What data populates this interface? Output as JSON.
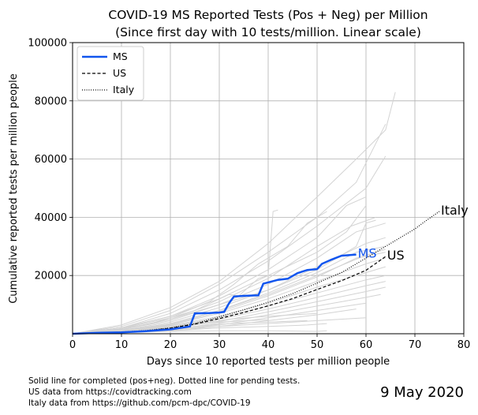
{
  "chart_data": {
    "type": "line",
    "title": "COVID-19 MS Reported Tests (Pos + Neg) per Million",
    "subtitle": "(Since first day with 10 tests/million. Linear scale)",
    "xlabel": "Days since 10 reported tests per million people",
    "ylabel": "Cumulative reported tests per million people",
    "xlim": [
      0,
      80
    ],
    "ylim": [
      0,
      100000
    ],
    "x_ticks": [
      "0",
      "10",
      "20",
      "30",
      "40",
      "50",
      "60",
      "70",
      "80"
    ],
    "y_ticks": [
      "20000",
      "40000",
      "60000",
      "80000",
      "100000"
    ],
    "grid": true,
    "legend_position": "top-left",
    "series": [
      {
        "name": "MS",
        "label": "MS",
        "color": "#1155ee",
        "style": "solid",
        "points": [
          [
            0,
            0
          ],
          [
            5,
            300
          ],
          [
            10,
            500
          ],
          [
            15,
            900
          ],
          [
            20,
            1500
          ],
          [
            24,
            2500
          ],
          [
            25,
            7000
          ],
          [
            28,
            7100
          ],
          [
            30,
            7300
          ],
          [
            31,
            7500
          ],
          [
            32,
            10500
          ],
          [
            33,
            12800
          ],
          [
            35,
            13000
          ],
          [
            38,
            13200
          ],
          [
            39,
            17200
          ],
          [
            42,
            18500
          ],
          [
            44,
            18900
          ],
          [
            46,
            20800
          ],
          [
            48,
            21900
          ],
          [
            50,
            22200
          ],
          [
            51,
            24000
          ],
          [
            53,
            25500
          ],
          [
            55,
            26800
          ],
          [
            58,
            27200
          ]
        ]
      },
      {
        "name": "US",
        "label": "US",
        "color": "#000000",
        "style": "dashed",
        "points": [
          [
            0,
            0
          ],
          [
            5,
            200
          ],
          [
            10,
            500
          ],
          [
            15,
            1000
          ],
          [
            20,
            1900
          ],
          [
            25,
            3300
          ],
          [
            30,
            5200
          ],
          [
            35,
            7300
          ],
          [
            40,
            9600
          ],
          [
            45,
            12100
          ],
          [
            50,
            15200
          ],
          [
            55,
            18200
          ],
          [
            60,
            21800
          ],
          [
            64,
            26500
          ]
        ]
      },
      {
        "name": "Italy",
        "label": "Italy",
        "color": "#000000",
        "style": "dotted",
        "points": [
          [
            0,
            0
          ],
          [
            5,
            250
          ],
          [
            10,
            600
          ],
          [
            15,
            1100
          ],
          [
            20,
            2000
          ],
          [
            25,
            3500
          ],
          [
            30,
            5800
          ],
          [
            35,
            8200
          ],
          [
            40,
            10800
          ],
          [
            45,
            13800
          ],
          [
            50,
            17400
          ],
          [
            55,
            21000
          ],
          [
            60,
            26000
          ],
          [
            65,
            31000
          ],
          [
            70,
            36000
          ],
          [
            72,
            38500
          ],
          [
            75,
            42000
          ]
        ]
      }
    ],
    "background_series": [
      {
        "points": [
          [
            0,
            0
          ],
          [
            10,
            3000
          ],
          [
            20,
            9000
          ],
          [
            30,
            18000
          ],
          [
            40,
            31000
          ],
          [
            50,
            47000
          ],
          [
            58,
            60000
          ],
          [
            64,
            70000
          ],
          [
            66,
            83000
          ]
        ]
      },
      {
        "points": [
          [
            0,
            0
          ],
          [
            10,
            2500
          ],
          [
            20,
            8000
          ],
          [
            30,
            17000
          ],
          [
            40,
            28000
          ],
          [
            50,
            40000
          ],
          [
            58,
            52000
          ],
          [
            64,
            72000
          ]
        ]
      },
      {
        "points": [
          [
            0,
            0
          ],
          [
            10,
            2000
          ],
          [
            20,
            7000
          ],
          [
            30,
            15000
          ],
          [
            40,
            25000
          ],
          [
            50,
            37000
          ],
          [
            60,
            50000
          ],
          [
            64,
            61000
          ]
        ]
      },
      {
        "points": [
          [
            0,
            0
          ],
          [
            10,
            2000
          ],
          [
            20,
            6000
          ],
          [
            30,
            13000
          ],
          [
            40,
            22000
          ],
          [
            50,
            33000
          ],
          [
            56,
            44000
          ],
          [
            60,
            47000
          ]
        ]
      },
      {
        "points": [
          [
            0,
            0
          ],
          [
            10,
            1500
          ],
          [
            20,
            5000
          ],
          [
            30,
            11000
          ],
          [
            40,
            19000
          ],
          [
            50,
            30000
          ],
          [
            57,
            37000
          ],
          [
            62,
            40000
          ]
        ]
      },
      {
        "points": [
          [
            0,
            0
          ],
          [
            10,
            1500
          ],
          [
            20,
            4500
          ],
          [
            30,
            10000
          ],
          [
            40,
            17000
          ],
          [
            50,
            26000
          ],
          [
            58,
            35000
          ],
          [
            64,
            38000
          ]
        ]
      },
      {
        "points": [
          [
            0,
            0
          ],
          [
            10,
            1200
          ],
          [
            20,
            4000
          ],
          [
            30,
            9000
          ],
          [
            40,
            15000
          ],
          [
            50,
            23000
          ],
          [
            60,
            31000
          ],
          [
            64,
            33000
          ]
        ]
      },
      {
        "points": [
          [
            0,
            0
          ],
          [
            10,
            1000
          ],
          [
            20,
            3500
          ],
          [
            30,
            8000
          ],
          [
            40,
            13500
          ],
          [
            50,
            20000
          ],
          [
            60,
            27000
          ],
          [
            64,
            29000
          ]
        ]
      },
      {
        "points": [
          [
            0,
            0
          ],
          [
            10,
            1000
          ],
          [
            20,
            3000
          ],
          [
            30,
            7000
          ],
          [
            40,
            12000
          ],
          [
            50,
            18000
          ],
          [
            60,
            24000
          ],
          [
            64,
            26000
          ]
        ]
      },
      {
        "points": [
          [
            0,
            0
          ],
          [
            10,
            800
          ],
          [
            20,
            2800
          ],
          [
            30,
            6000
          ],
          [
            40,
            10500
          ],
          [
            50,
            16000
          ],
          [
            60,
            21000
          ],
          [
            64,
            23000
          ]
        ]
      },
      {
        "points": [
          [
            0,
            0
          ],
          [
            10,
            700
          ],
          [
            20,
            2500
          ],
          [
            30,
            5500
          ],
          [
            40,
            9500
          ],
          [
            50,
            14000
          ],
          [
            60,
            18500
          ],
          [
            64,
            20000
          ]
        ]
      },
      {
        "points": [
          [
            0,
            0
          ],
          [
            10,
            600
          ],
          [
            20,
            2200
          ],
          [
            30,
            5000
          ],
          [
            40,
            8500
          ],
          [
            50,
            12500
          ],
          [
            60,
            16500
          ],
          [
            64,
            18000
          ]
        ]
      },
      {
        "points": [
          [
            0,
            0
          ],
          [
            10,
            500
          ],
          [
            20,
            1800
          ],
          [
            30,
            4200
          ],
          [
            40,
            7500
          ],
          [
            50,
            11000
          ],
          [
            60,
            14500
          ],
          [
            64,
            16000
          ]
        ]
      },
      {
        "points": [
          [
            0,
            0
          ],
          [
            10,
            500
          ],
          [
            20,
            1500
          ],
          [
            30,
            3600
          ],
          [
            40,
            6500
          ],
          [
            50,
            9500
          ],
          [
            60,
            12500
          ],
          [
            63,
            13500
          ]
        ]
      },
      {
        "points": [
          [
            0,
            0
          ],
          [
            10,
            400
          ],
          [
            20,
            1300
          ],
          [
            30,
            3000
          ],
          [
            40,
            5500
          ],
          [
            50,
            8000
          ],
          [
            60,
            10500
          ]
        ]
      },
      {
        "points": [
          [
            0,
            0
          ],
          [
            10,
            300
          ],
          [
            20,
            1000
          ],
          [
            30,
            2500
          ],
          [
            40,
            4500
          ],
          [
            50,
            6500
          ],
          [
            58,
            8500
          ]
        ]
      },
      {
        "points": [
          [
            0,
            0
          ],
          [
            10,
            1500
          ],
          [
            20,
            5000
          ],
          [
            30,
            10000
          ],
          [
            40,
            15000
          ],
          [
            50,
            22000
          ],
          [
            58,
            30000
          ],
          [
            60,
            38000
          ],
          [
            62,
            39000
          ]
        ]
      },
      {
        "points": [
          [
            0,
            0
          ],
          [
            10,
            2000
          ],
          [
            20,
            6000
          ],
          [
            30,
            12000
          ],
          [
            40,
            20000
          ],
          [
            50,
            28000
          ],
          [
            56,
            35000
          ],
          [
            60,
            44000
          ]
        ]
      },
      {
        "points": [
          [
            0,
            0
          ],
          [
            15,
            3000
          ],
          [
            25,
            8000
          ],
          [
            32,
            13500
          ],
          [
            34,
            13000
          ],
          [
            38,
            19000
          ],
          [
            40,
            20000
          ],
          [
            41,
            42000
          ],
          [
            42,
            42500
          ]
        ]
      },
      {
        "points": [
          [
            0,
            0
          ],
          [
            10,
            1800
          ],
          [
            20,
            5500
          ],
          [
            28,
            11000
          ],
          [
            33,
            17000
          ],
          [
            38,
            24000
          ],
          [
            44,
            30000
          ],
          [
            48,
            38000
          ],
          [
            52,
            42000
          ]
        ]
      },
      {
        "points": [
          [
            0,
            0
          ],
          [
            5,
            1000
          ],
          [
            15,
            2000
          ],
          [
            25,
            3500
          ],
          [
            28,
            4000
          ],
          [
            32,
            5000
          ],
          [
            40,
            6000
          ],
          [
            50,
            7000
          ]
        ]
      },
      {
        "points": [
          [
            0,
            0
          ],
          [
            5,
            1000
          ],
          [
            15,
            1500
          ],
          [
            25,
            2500
          ],
          [
            32,
            3500
          ],
          [
            40,
            4000
          ],
          [
            48,
            4500
          ]
        ]
      },
      {
        "points": [
          [
            0,
            0
          ],
          [
            10,
            800
          ],
          [
            20,
            1500
          ],
          [
            30,
            2500
          ],
          [
            40,
            3500
          ],
          [
            50,
            4500
          ],
          [
            60,
            5500
          ]
        ]
      },
      {
        "points": [
          [
            0,
            0
          ],
          [
            10,
            500
          ],
          [
            20,
            1000
          ],
          [
            30,
            2000
          ],
          [
            40,
            2500
          ],
          [
            48,
            3000
          ],
          [
            52,
            3500
          ]
        ]
      },
      {
        "points": [
          [
            0,
            0
          ],
          [
            10,
            500
          ],
          [
            20,
            800
          ],
          [
            30,
            1000
          ],
          [
            40,
            1000
          ],
          [
            50,
            800
          ],
          [
            52,
            1000
          ]
        ]
      },
      {
        "points": [
          [
            0,
            0
          ],
          [
            8,
            600
          ],
          [
            16,
            1500
          ],
          [
            24,
            3000
          ],
          [
            30,
            4000
          ],
          [
            36,
            4500
          ],
          [
            40,
            4800
          ]
        ]
      },
      {
        "points": [
          [
            0,
            0
          ],
          [
            10,
            1000
          ],
          [
            20,
            3500
          ],
          [
            30,
            8000
          ],
          [
            40,
            14000
          ],
          [
            50,
            21000
          ],
          [
            58,
            28000
          ],
          [
            64,
            30000
          ]
        ]
      },
      {
        "points": [
          [
            0,
            0
          ],
          [
            10,
            900
          ],
          [
            20,
            3200
          ],
          [
            30,
            7500
          ],
          [
            40,
            13000
          ],
          [
            50,
            19500
          ],
          [
            58,
            26000
          ],
          [
            64,
            28000
          ]
        ]
      }
    ]
  },
  "legend": {
    "ms": "MS",
    "us": "US",
    "italy": "Italy"
  },
  "footnotes": {
    "line1": "Solid line for completed (pos+neg). Dotted line for pending tests.",
    "line2": "US data from https://covidtracking.com",
    "line3": "Italy data from https://github.com/pcm-dpc/COVID-19"
  },
  "date": "9 May 2020"
}
